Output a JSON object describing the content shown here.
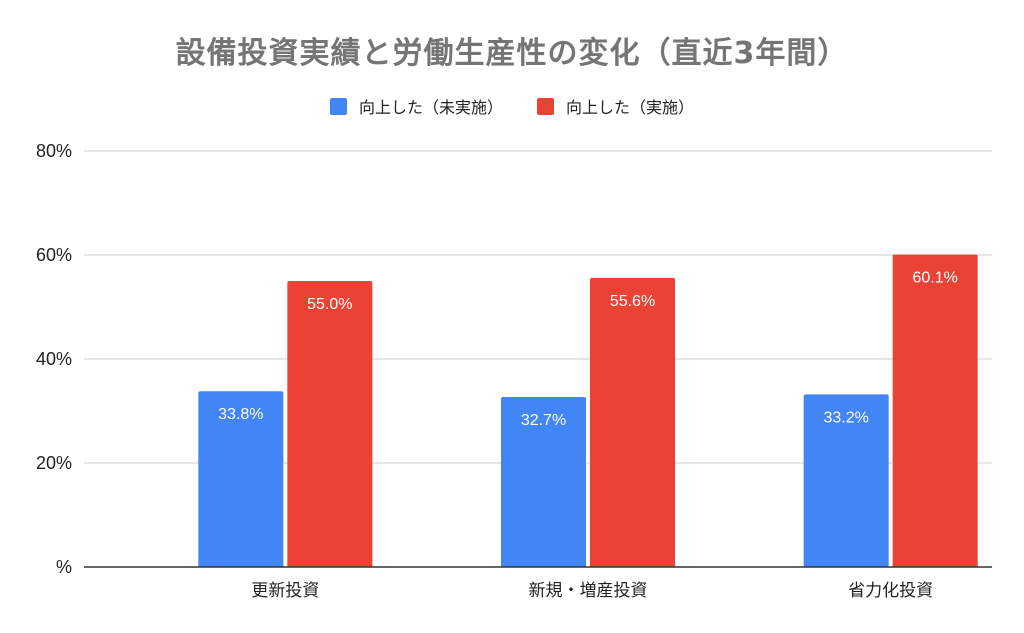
{
  "chart_data": {
    "type": "bar",
    "title": "設備投資実績と労働生産性の変化（直近3年間）",
    "xlabel": "",
    "ylabel": "",
    "categories": [
      "更新投資",
      "新規・増産投資",
      "省力化投資"
    ],
    "series": [
      {
        "name": "向上した（未実施）",
        "values": [
          33.8,
          32.7,
          33.2
        ],
        "labels": [
          "33.8%",
          "32.7%",
          "33.2%"
        ],
        "color": "#4285f4"
      },
      {
        "name": "向上した（実施）",
        "values": [
          55.0,
          55.6,
          60.1
        ],
        "labels": [
          "55.0%",
          "55.6%",
          "60.1%"
        ],
        "color": "#ea4335"
      }
    ],
    "ylim": [
      0,
      80
    ],
    "yticks": [
      0,
      20,
      40,
      60,
      80
    ],
    "ytick_labels": [
      "%",
      "20%",
      "40%",
      "60%",
      "80%"
    ],
    "grid": true,
    "legend_position": "top"
  }
}
